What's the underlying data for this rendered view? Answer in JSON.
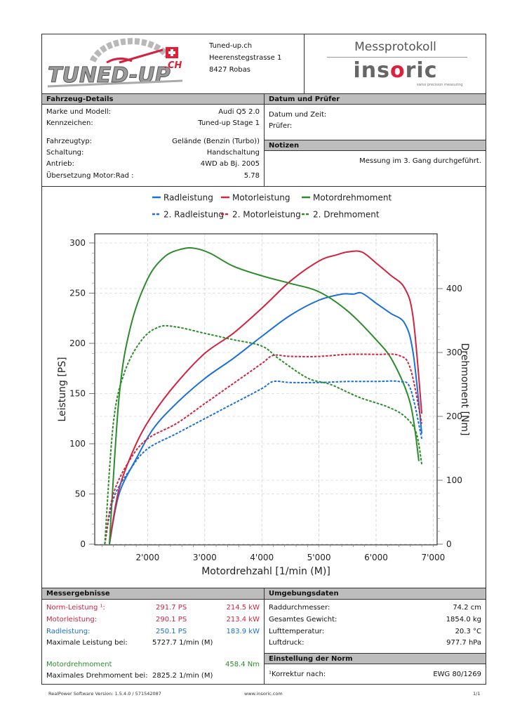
{
  "header": {
    "logo_text": "TUNED-UP.CH",
    "company": "Tuned-up.ch",
    "street": "Heerenstegstrasse 1",
    "city": "8427 Robas",
    "title": "Messprotokoll",
    "brand": "insoric",
    "brand_tagline": "swiss precision measuring"
  },
  "vehicle": {
    "heading": "Fahrzeug-Details",
    "rows": [
      {
        "label": "Marke und Modell:",
        "value": "Audi Q5 2.0"
      },
      {
        "label": "Kennzeichen:",
        "value": "Tuned-up Stage 1"
      },
      {
        "label": "Fahrzeugtyp:",
        "value": "Gelände (Benzin (Turbo))"
      },
      {
        "label": "Schaltung:",
        "value": "Handschaltung"
      },
      {
        "label": "Antrieb:",
        "value": "4WD ab Bj. 2005"
      },
      {
        "label": "Übersetzung Motor:Rad :",
        "value": "5.78"
      }
    ]
  },
  "date_tester": {
    "heading": "Datum und Prüfer",
    "date_label": "Datum und Zeit:",
    "tester_label": "Prüfer:"
  },
  "notes": {
    "heading": "Notizen",
    "text": "Messung im 3. Gang durchgeführt."
  },
  "results": {
    "heading": "Messergebnisse",
    "norm_label": "Norm-Leistung ¹:",
    "norm_ps": "291.7 PS",
    "norm_kw": "214.5 kW",
    "motor_label": "Motorleistung:",
    "motor_ps": "290.1 PS",
    "motor_kw": "213.4 kW",
    "rad_label": "Radleistung:",
    "rad_ps": "250.1 PS",
    "rad_kw": "183.9 kW",
    "max_power_label": "Maximale Leistung bei:",
    "max_power_rpm": "5727.7 1/min (M)",
    "torque_label": "Motordrehmoment",
    "torque_value": "458.4 Nm",
    "max_torque_label": "Maximales Drehmoment bei:",
    "max_torque_rpm": "2825.2 1/min (M)"
  },
  "environment": {
    "heading": "Umgebungsdaten",
    "rows": [
      {
        "label": "Raddurchmesser:",
        "value": "74.2 cm"
      },
      {
        "label": "Gesamtes Gewicht:",
        "value": "1854.0 kg"
      },
      {
        "label": "Lufttemperatur:",
        "value": "20.3 °C"
      },
      {
        "label": "Luftdruck:",
        "value": "977.7 hPa"
      }
    ]
  },
  "norm": {
    "heading": "Einstellung der Norm",
    "label": "¹Korrektur nach:",
    "value": "EWG 80/1269"
  },
  "footer": {
    "software": "RealPower Software Version: 1.5.4.0 / 571542087",
    "url": "www.insoric.com",
    "page": "1/1"
  },
  "colors": {
    "blue": "#1b6fd8",
    "red": "#d0243f",
    "green": "#2c8c2c",
    "section_header": "#bdbdbd"
  },
  "chart_data": {
    "type": "line",
    "title": "",
    "xlabel": "Motordrehzahl [1/min (M)]",
    "ylabel": "Leistung [PS]",
    "y2label": "Drehmoment [Nm]",
    "xlim": [
      1000,
      7050
    ],
    "ylim": [
      0,
      310
    ],
    "y2lim": [
      0,
      480
    ],
    "xticks": [
      2000,
      3000,
      4000,
      5000,
      6000,
      7000
    ],
    "xtick_labels": [
      "2'000",
      "3'000",
      "4'000",
      "5'000",
      "6'000",
      "7'000"
    ],
    "yticks": [
      0,
      50,
      100,
      150,
      200,
      250,
      300
    ],
    "yticks_labels": [
      "0",
      "50",
      "100",
      "150",
      "200",
      "250",
      "300"
    ],
    "y2ticks": [
      0,
      100,
      200,
      300,
      400
    ],
    "y2ticks_labels": [
      "0",
      "100",
      "200",
      "300",
      "400"
    ],
    "grid": true,
    "legend_position": "top",
    "series": [
      {
        "name": "Radleistung",
        "axis": "left",
        "style": "solid",
        "color": "#1b6fd8",
        "x": [
          1330,
          1500,
          1800,
          2100,
          2500,
          3000,
          3500,
          4000,
          4500,
          5000,
          5400,
          5600,
          5750,
          6000,
          6250,
          6500,
          6650,
          6800
        ],
        "y": [
          0,
          50,
          85,
          115,
          140,
          165,
          185,
          207,
          228,
          243,
          249,
          249,
          250,
          240,
          230,
          220,
          190,
          110
        ]
      },
      {
        "name": "Motorleistung",
        "axis": "left",
        "style": "solid",
        "color": "#d0243f",
        "x": [
          1330,
          1500,
          1800,
          2100,
          2500,
          3000,
          3500,
          4000,
          4500,
          5000,
          5300,
          5500,
          5750,
          6000,
          6250,
          6500,
          6650,
          6800
        ],
        "y": [
          0,
          55,
          100,
          130,
          160,
          190,
          210,
          235,
          262,
          282,
          288,
          291,
          291,
          280,
          268,
          255,
          225,
          130
        ]
      },
      {
        "name": "Motordrehmoment",
        "axis": "right",
        "style": "solid",
        "color": "#2c8c2c",
        "x": [
          1330,
          1500,
          1700,
          2000,
          2300,
          2600,
          2825,
          3100,
          3500,
          4000,
          4500,
          5000,
          5500,
          6000,
          6300,
          6600,
          6750
        ],
        "y": [
          0,
          230,
          340,
          415,
          450,
          462,
          463,
          455,
          435,
          420,
          408,
          395,
          365,
          320,
          285,
          220,
          130
        ]
      },
      {
        "name": "2. Radleistung",
        "axis": "left",
        "style": "dashed",
        "color": "#1b6fd8",
        "x": [
          1250,
          1400,
          1700,
          2000,
          2500,
          3000,
          3500,
          4000,
          4200,
          4500,
          5000,
          5500,
          6000,
          6400,
          6600,
          6800
        ],
        "y": [
          0,
          45,
          75,
          95,
          110,
          125,
          140,
          155,
          162,
          161,
          161,
          162,
          162,
          162,
          155,
          105
        ]
      },
      {
        "name": "2. Motorleistung",
        "axis": "left",
        "style": "dashed",
        "color": "#d0243f",
        "x": [
          1250,
          1400,
          1700,
          2000,
          2500,
          3000,
          3500,
          4000,
          4200,
          4500,
          5000,
          5500,
          6000,
          6400,
          6600,
          6800
        ],
        "y": [
          0,
          50,
          85,
          105,
          120,
          140,
          160,
          180,
          188,
          187,
          187,
          189,
          189,
          188,
          175,
          120
        ]
      },
      {
        "name": "2. Drehmoment",
        "axis": "right",
        "style": "dashed",
        "color": "#2c8c2c",
        "x": [
          1250,
          1400,
          1600,
          1900,
          2200,
          2500,
          3000,
          3500,
          4000,
          4300,
          4800,
          5200,
          5700,
          6200,
          6500,
          6700,
          6800
        ],
        "y": [
          0,
          190,
          270,
          320,
          340,
          340,
          330,
          320,
          310,
          290,
          260,
          250,
          230,
          215,
          200,
          175,
          125
        ]
      }
    ]
  }
}
